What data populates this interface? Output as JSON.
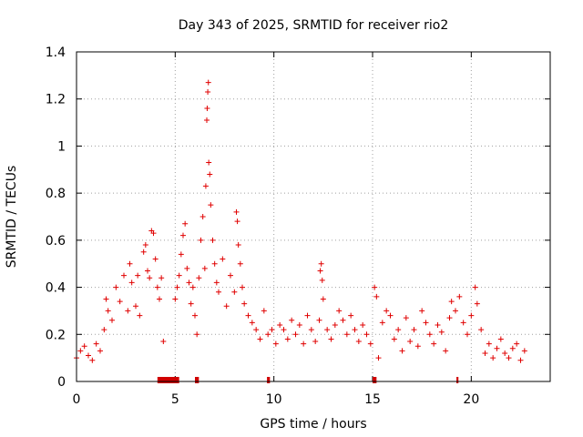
{
  "chart_data": {
    "type": "scatter",
    "title": "Day 343 of 2025, SRMTID for receiver rio2",
    "xlabel": "GPS time / hours",
    "ylabel": "SRMTID / TECUs",
    "xlim": [
      0,
      24
    ],
    "ylim": [
      0,
      1.4
    ],
    "xticks": [
      0,
      5,
      10,
      15,
      20
    ],
    "xtick_labels": [
      "0",
      "5",
      "10",
      "15",
      "20"
    ],
    "yticks": [
      0,
      0.2,
      0.4,
      0.6,
      0.8,
      1.0,
      1.2,
      1.4
    ],
    "ytick_labels": [
      "0",
      "0.2",
      "0.4",
      "0.6",
      "0.8",
      "1",
      "1.2",
      "1.4"
    ],
    "grid": true,
    "marker": "+",
    "color": "#e00000",
    "x_extent": [
      0,
      22.7
    ],
    "series": [
      {
        "name": "SRMTID",
        "points": [
          [
            0.0,
            0.1
          ],
          [
            0.2,
            0.13
          ],
          [
            0.4,
            0.15
          ],
          [
            0.6,
            0.11
          ],
          [
            0.8,
            0.09
          ],
          [
            1.0,
            0.16
          ],
          [
            1.2,
            0.13
          ],
          [
            1.4,
            0.22
          ],
          [
            1.5,
            0.35
          ],
          [
            1.6,
            0.3
          ],
          [
            1.8,
            0.26
          ],
          [
            2.0,
            0.4
          ],
          [
            2.2,
            0.34
          ],
          [
            2.4,
            0.45
          ],
          [
            2.6,
            0.3
          ],
          [
            2.7,
            0.5
          ],
          [
            2.8,
            0.42
          ],
          [
            3.0,
            0.32
          ],
          [
            3.1,
            0.45
          ],
          [
            3.2,
            0.28
          ],
          [
            3.4,
            0.55
          ],
          [
            3.5,
            0.58
          ],
          [
            3.6,
            0.47
          ],
          [
            3.7,
            0.44
          ],
          [
            3.8,
            0.64
          ],
          [
            3.9,
            0.63
          ],
          [
            4.0,
            0.52
          ],
          [
            4.1,
            0.4
          ],
          [
            4.2,
            0.35
          ],
          [
            4.3,
            0.44
          ],
          [
            4.4,
            0.17
          ],
          [
            5.0,
            0.35
          ],
          [
            5.1,
            0.4
          ],
          [
            5.2,
            0.45
          ],
          [
            5.3,
            0.54
          ],
          [
            5.4,
            0.62
          ],
          [
            5.5,
            0.67
          ],
          [
            5.6,
            0.48
          ],
          [
            5.7,
            0.42
          ],
          [
            5.8,
            0.33
          ],
          [
            5.9,
            0.4
          ],
          [
            6.0,
            0.28
          ],
          [
            6.1,
            0.2
          ],
          [
            6.2,
            0.44
          ],
          [
            6.3,
            0.6
          ],
          [
            6.4,
            0.7
          ],
          [
            6.5,
            0.48
          ],
          [
            6.55,
            0.83
          ],
          [
            6.6,
            1.11
          ],
          [
            6.62,
            1.16
          ],
          [
            6.65,
            1.23
          ],
          [
            6.68,
            1.27
          ],
          [
            6.7,
            0.93
          ],
          [
            6.75,
            0.88
          ],
          [
            6.8,
            0.75
          ],
          [
            6.9,
            0.6
          ],
          [
            7.0,
            0.5
          ],
          [
            7.1,
            0.42
          ],
          [
            7.2,
            0.38
          ],
          [
            7.4,
            0.52
          ],
          [
            7.6,
            0.32
          ],
          [
            7.8,
            0.45
          ],
          [
            8.0,
            0.38
          ],
          [
            8.1,
            0.72
          ],
          [
            8.15,
            0.68
          ],
          [
            8.2,
            0.58
          ],
          [
            8.3,
            0.5
          ],
          [
            8.4,
            0.4
          ],
          [
            8.5,
            0.33
          ],
          [
            8.7,
            0.28
          ],
          [
            8.9,
            0.25
          ],
          [
            9.1,
            0.22
          ],
          [
            9.3,
            0.18
          ],
          [
            9.5,
            0.3
          ],
          [
            9.7,
            0.2
          ],
          [
            9.9,
            0.22
          ],
          [
            10.1,
            0.16
          ],
          [
            10.3,
            0.24
          ],
          [
            10.5,
            0.22
          ],
          [
            10.7,
            0.18
          ],
          [
            10.9,
            0.26
          ],
          [
            11.1,
            0.2
          ],
          [
            11.3,
            0.24
          ],
          [
            11.5,
            0.16
          ],
          [
            11.7,
            0.28
          ],
          [
            11.9,
            0.22
          ],
          [
            12.1,
            0.17
          ],
          [
            12.3,
            0.26
          ],
          [
            12.35,
            0.47
          ],
          [
            12.4,
            0.5
          ],
          [
            12.45,
            0.43
          ],
          [
            12.5,
            0.35
          ],
          [
            12.7,
            0.22
          ],
          [
            12.9,
            0.18
          ],
          [
            13.1,
            0.24
          ],
          [
            13.3,
            0.3
          ],
          [
            13.5,
            0.26
          ],
          [
            13.7,
            0.2
          ],
          [
            13.9,
            0.28
          ],
          [
            14.1,
            0.22
          ],
          [
            14.3,
            0.17
          ],
          [
            14.5,
            0.24
          ],
          [
            14.7,
            0.2
          ],
          [
            14.9,
            0.16
          ],
          [
            15.1,
            0.4
          ],
          [
            15.2,
            0.36
          ],
          [
            15.3,
            0.1
          ],
          [
            15.5,
            0.25
          ],
          [
            15.7,
            0.3
          ],
          [
            15.9,
            0.28
          ],
          [
            16.1,
            0.18
          ],
          [
            16.3,
            0.22
          ],
          [
            16.5,
            0.13
          ],
          [
            16.7,
            0.27
          ],
          [
            16.9,
            0.17
          ],
          [
            17.1,
            0.22
          ],
          [
            17.3,
            0.15
          ],
          [
            17.5,
            0.3
          ],
          [
            17.7,
            0.25
          ],
          [
            17.9,
            0.2
          ],
          [
            18.1,
            0.16
          ],
          [
            18.3,
            0.24
          ],
          [
            18.5,
            0.21
          ],
          [
            18.7,
            0.13
          ],
          [
            18.9,
            0.27
          ],
          [
            19.0,
            0.34
          ],
          [
            19.2,
            0.3
          ],
          [
            19.4,
            0.36
          ],
          [
            19.6,
            0.25
          ],
          [
            19.8,
            0.2
          ],
          [
            20.0,
            0.28
          ],
          [
            20.2,
            0.4
          ],
          [
            20.3,
            0.33
          ],
          [
            20.5,
            0.22
          ],
          [
            20.7,
            0.12
          ],
          [
            20.9,
            0.16
          ],
          [
            21.1,
            0.1
          ],
          [
            21.3,
            0.14
          ],
          [
            21.5,
            0.18
          ],
          [
            21.7,
            0.12
          ],
          [
            21.9,
            0.1
          ],
          [
            22.1,
            0.14
          ],
          [
            22.3,
            0.16
          ],
          [
            22.5,
            0.09
          ],
          [
            22.7,
            0.13
          ]
        ]
      }
    ],
    "flagged_intervals": [
      [
        4.1,
        5.2
      ],
      [
        6.0,
        6.2
      ],
      [
        9.65,
        9.8
      ],
      [
        15.0,
        15.2
      ],
      [
        19.25,
        19.35
      ]
    ]
  }
}
